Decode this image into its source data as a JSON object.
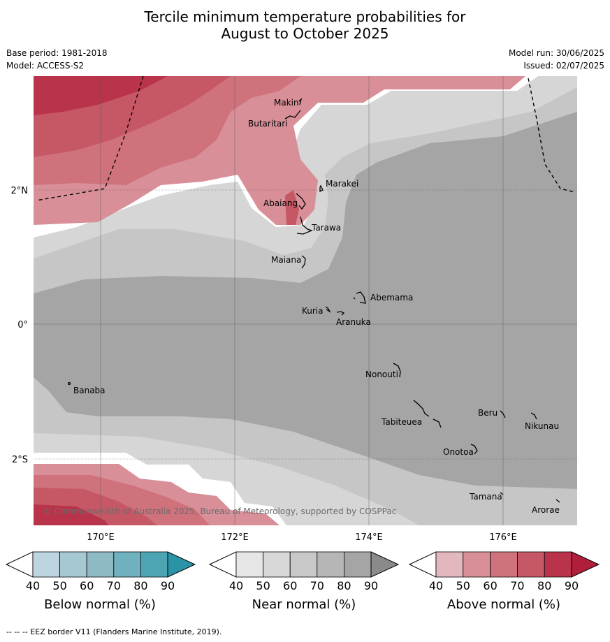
{
  "title_line1": "Tercile minimum temperature probabilities for",
  "title_line2": "August to October 2025",
  "base_period": "Base period: 1981-2018",
  "model": "Model: ACCESS-S2",
  "model_run": "Model run: 30/06/2025",
  "issued": "Issued: 02/07/2025",
  "copyright": "© Commonwealth of Australia 2025, Bureau of Meteorology, supported by COSPPac",
  "footer": "--  --  -- EEZ border V11 (Flanders Marine Institute, 2019).",
  "map": {
    "lat_ticks": [
      {
        "label": "2°N",
        "lat": 2
      },
      {
        "label": "0°",
        "lat": 0
      },
      {
        "label": "2°S",
        "lat": -2
      }
    ],
    "lon_ticks": [
      {
        "label": "170°E",
        "lon": 170
      },
      {
        "label": "172°E",
        "lon": 172
      },
      {
        "label": "174°E",
        "lon": 174
      },
      {
        "label": "176°E",
        "lon": 176
      }
    ],
    "places": [
      {
        "name": "Makin"
      },
      {
        "name": "Butaritari"
      },
      {
        "name": "Marakei"
      },
      {
        "name": "Abaiang"
      },
      {
        "name": "Tarawa"
      },
      {
        "name": "Maiana"
      },
      {
        "name": "Abemama"
      },
      {
        "name": "Kuria"
      },
      {
        "name": "Aranuka"
      },
      {
        "name": "Nonouti"
      },
      {
        "name": "Banaba"
      },
      {
        "name": "Beru"
      },
      {
        "name": "Tabiteuea"
      },
      {
        "name": "Nikunau"
      },
      {
        "name": "Onotoa"
      },
      {
        "name": "Tamana"
      },
      {
        "name": "Arorae"
      }
    ]
  },
  "colorbars": [
    {
      "label": "Below normal (%)",
      "ticks": [
        "40",
        "50",
        "60",
        "70",
        "80",
        "90"
      ],
      "colors": [
        "#ffffff",
        "#bdd5de",
        "#a6c8d2",
        "#8ebac6",
        "#6fb1bf",
        "#4da5b4",
        "#2a93a6"
      ]
    },
    {
      "label": "Near normal (%)",
      "ticks": [
        "40",
        "50",
        "60",
        "70",
        "80",
        "90"
      ],
      "colors": [
        "#ffffff",
        "#e6e6e6",
        "#d8d8d8",
        "#c8c8c8",
        "#b6b6b6",
        "#a5a5a5",
        "#8a8a8a"
      ]
    },
    {
      "label": "Above normal (%)",
      "ticks": [
        "40",
        "50",
        "60",
        "70",
        "80",
        "90"
      ],
      "colors": [
        "#ffffff",
        "#e2b7be",
        "#d88f98",
        "#cf727c",
        "#c65865",
        "#b9334a",
        "#b01e3c"
      ]
    }
  ]
}
